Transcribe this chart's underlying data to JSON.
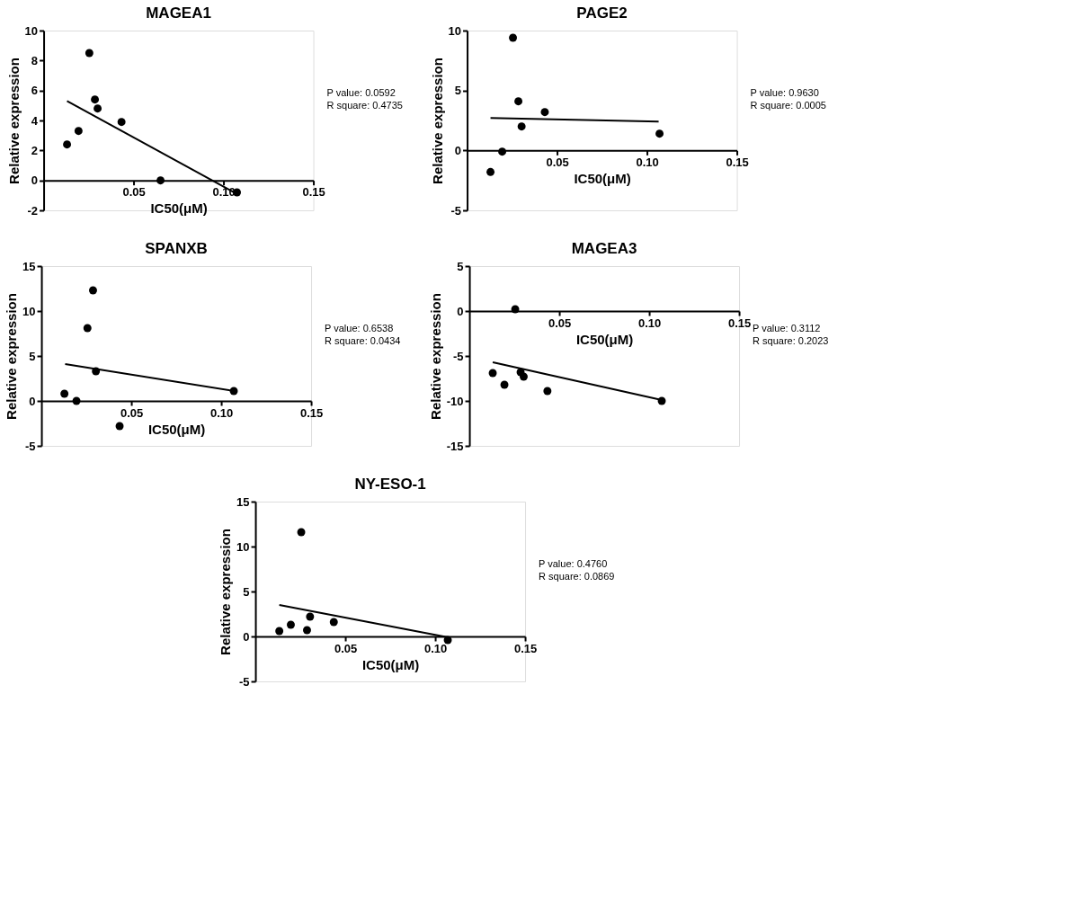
{
  "chart_data": [
    {
      "type": "scatter",
      "title": "MAGEA1",
      "xlabel": "IC50(μM)",
      "ylabel": "Relative expression",
      "xlim": [
        0,
        0.15
      ],
      "xticks": [
        {
          "value": 0.05,
          "label": "0.05"
        },
        {
          "value": 0.1,
          "label": "0.10"
        },
        {
          "value": 0.15,
          "label": "0.15"
        }
      ],
      "ylim": [
        -2,
        10
      ],
      "yticks": [
        -2,
        0,
        2,
        4,
        6,
        8,
        10
      ],
      "grid": false,
      "annotations": [
        "P value: 0.0592",
        "R square: 0.4735"
      ],
      "series": [
        {
          "color": "#000000",
          "marker": "circle",
          "x": [
            0.013,
            0.0194,
            0.0254,
            0.0285,
            0.03,
            0.0433,
            0.065,
            0.1075
          ],
          "values": [
            2.4,
            3.3,
            8.5,
            5.4,
            4.8,
            3.9,
            0,
            -0.8
          ]
        },
        {
          "type": "line",
          "color": "#000000",
          "marker": "none",
          "line_style": "solid",
          "x": [
            0.013,
            0.1059
          ],
          "values": [
            5.3,
            -0.8
          ]
        }
      ]
    },
    {
      "type": "scatter",
      "title": "PAGE2",
      "xlabel": "IC50(μM)",
      "ylabel": "Relative expression",
      "xlim": [
        0,
        0.15
      ],
      "xticks": [
        {
          "value": 0.05,
          "label": "0.05"
        },
        {
          "value": 0.1,
          "label": "0.10"
        },
        {
          "value": 0.15,
          "label": "0.15"
        }
      ],
      "ylim": [
        -5,
        10
      ],
      "yticks": [
        -5,
        0,
        5,
        10
      ],
      "grid": false,
      "annotations": [
        "P value: 0.9630",
        "R square: 0.0005"
      ],
      "series": [
        {
          "color": "#000000",
          "marker": "circle",
          "x": [
            0.013,
            0.0195,
            0.0255,
            0.0285,
            0.0303,
            0.0432,
            0.107
          ],
          "values": [
            -1.8,
            -0.1,
            9.4,
            4.1,
            2.0,
            3.2,
            1.4
          ]
        },
        {
          "type": "line",
          "color": "#000000",
          "marker": "none",
          "line_style": "solid",
          "x": [
            0.013,
            0.1065
          ],
          "values": [
            2.7,
            2.4
          ]
        }
      ]
    },
    {
      "type": "scatter",
      "title": "SPANXB",
      "xlabel": "IC50(μM)",
      "ylabel": "Relative expression",
      "xlim": [
        0,
        0.15
      ],
      "xticks": [
        {
          "value": 0.05,
          "label": "0.05"
        },
        {
          "value": 0.1,
          "label": "0.10"
        },
        {
          "value": 0.15,
          "label": "0.15"
        }
      ],
      "ylim": [
        -5,
        15
      ],
      "yticks": [
        -5,
        0,
        5,
        10,
        15
      ],
      "grid": false,
      "annotations": [
        "P value: 0.6538",
        "R square: 0.0434"
      ],
      "series": [
        {
          "color": "#000000",
          "marker": "circle",
          "x": [
            0.0128,
            0.0195,
            0.0256,
            0.0287,
            0.0303,
            0.0435,
            0.107
          ],
          "values": [
            0.8,
            0,
            8.1,
            12.3,
            3.3,
            -2.8,
            1.1
          ]
        },
        {
          "type": "line",
          "color": "#000000",
          "marker": "none",
          "line_style": "solid",
          "x": [
            0.0132,
            0.107
          ],
          "values": [
            4.1,
            1.1
          ]
        }
      ]
    },
    {
      "type": "scatter",
      "title": "MAGEA3",
      "xlabel": "IC50(μM)",
      "ylabel": "Relative expression",
      "xlim": [
        0,
        0.15
      ],
      "xticks": [
        {
          "value": 0.05,
          "label": "0.05"
        },
        {
          "value": 0.1,
          "label": "0.10"
        },
        {
          "value": 0.15,
          "label": "0.15"
        }
      ],
      "ylim": [
        -15,
        5
      ],
      "yticks": [
        -15,
        -10,
        -5,
        0,
        5
      ],
      "grid": false,
      "annotations": [
        "P value: 0.3112",
        "R square: 0.2023"
      ],
      "series": [
        {
          "color": "#000000",
          "marker": "circle",
          "x": [
            0.013,
            0.0195,
            0.0255,
            0.0285,
            0.0302,
            0.0434,
            0.107
          ],
          "values": [
            -6.9,
            -8.2,
            0.2,
            -6.8,
            -7.3,
            -8.9,
            -10.0
          ]
        },
        {
          "type": "line",
          "color": "#000000",
          "marker": "none",
          "line_style": "solid",
          "x": [
            0.013,
            0.107
          ],
          "values": [
            -5.7,
            -9.9
          ]
        }
      ]
    },
    {
      "type": "scatter",
      "title": "NY-ESO-1",
      "xlabel": "IC50(μM)",
      "ylabel": "Relative expression",
      "xlim": [
        0,
        0.15
      ],
      "xticks": [
        {
          "value": 0.05,
          "label": "0.05"
        },
        {
          "value": 0.1,
          "label": "0.10"
        },
        {
          "value": 0.15,
          "label": "0.15"
        }
      ],
      "ylim": [
        -5,
        15
      ],
      "yticks": [
        -5,
        0,
        5,
        10,
        15
      ],
      "grid": false,
      "annotations": [
        "P value: 0.4760",
        "R square: 0.0869"
      ],
      "series": [
        {
          "color": "#000000",
          "marker": "circle",
          "x": [
            0.0133,
            0.0197,
            0.0255,
            0.0287,
            0.0304,
            0.0436,
            0.107
          ],
          "values": [
            0.6,
            1.3,
            11.6,
            0.7,
            2.2,
            1.6,
            -0.4
          ]
        },
        {
          "type": "line",
          "color": "#000000",
          "marker": "none",
          "line_style": "solid",
          "x": [
            0.0133,
            0.1072
          ],
          "values": [
            3.5,
            -0.1
          ]
        }
      ]
    }
  ]
}
